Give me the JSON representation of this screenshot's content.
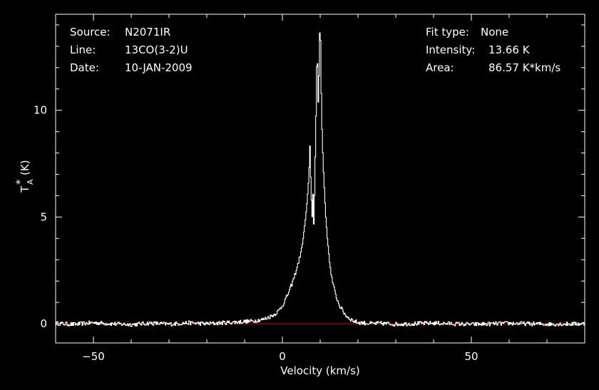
{
  "info_left": {
    "source_label": "Source:",
    "source_value": "N2071IR",
    "line_label": "Line:",
    "line_value": "13CO(3-2)U",
    "date_label": "Date:",
    "date_value": "10-JAN-2009"
  },
  "info_right": {
    "fit_label": "Fit type:",
    "fit_value": "None",
    "intensity_label": "Intensity:",
    "intensity_value": "13.66 K",
    "area_label": "Area:",
    "area_value": "86.57 K*km/s"
  },
  "colors": {
    "background": "#000000",
    "foreground": "#ffffff",
    "baseline": "#cc0000"
  },
  "chart_data": {
    "type": "line",
    "style": "histogram",
    "title": "",
    "xlabel": "Velocity (km/s)",
    "ylabel_main": "T",
    "ylabel_super": "*",
    "ylabel_sub": "A",
    "ylabel_unit": "(K)",
    "xlim": [
      -60,
      80
    ],
    "ylim": [
      -0.9,
      14.5
    ],
    "xticks": [
      -50,
      0,
      50
    ],
    "xtick_labels": [
      "−50",
      "0",
      "50"
    ],
    "yticks": [
      0,
      5,
      10
    ],
    "ytick_labels": [
      "0",
      "5",
      "10"
    ],
    "baseline_y": 0,
    "noise_rms": 0.06,
    "series": [
      {
        "style": "histogram",
        "color": "#ffffff",
        "x": [
          -60,
          -55,
          -50,
          -45,
          -40,
          -35,
          -30,
          -25,
          -20,
          -15,
          -10,
          -8,
          -6,
          -5,
          -4,
          -3,
          -2,
          -1,
          0,
          1,
          2,
          3,
          4,
          5,
          5.5,
          6,
          6.5,
          7,
          7.3,
          7.6,
          7.9,
          8.1,
          8.3,
          8.5,
          8.7,
          8.9,
          9.1,
          9.3,
          9.5,
          9.7,
          9.9,
          10.1,
          10.3,
          10.5,
          10.7,
          10.9,
          11.2,
          11.5,
          12,
          12.5,
          13,
          14,
          15,
          16,
          17,
          18,
          19,
          20,
          22,
          24,
          26,
          30,
          40,
          50,
          60,
          70,
          80
        ],
        "y": [
          0.02,
          -0.03,
          0.05,
          0.0,
          -0.04,
          0.03,
          -0.02,
          0.04,
          0.0,
          0.05,
          0.1,
          0.12,
          0.18,
          0.2,
          0.28,
          0.35,
          0.45,
          0.6,
          0.85,
          1.2,
          1.6,
          2.1,
          2.7,
          3.4,
          4.0,
          4.7,
          5.6,
          6.8,
          8.3,
          6.2,
          5.0,
          6.1,
          4.7,
          6.0,
          7.8,
          9.7,
          12.0,
          12.2,
          10.4,
          11.6,
          13.66,
          13.3,
          10.8,
          9.1,
          8.0,
          7.1,
          6.0,
          5.0,
          3.8,
          2.9,
          2.2,
          1.4,
          0.9,
          0.6,
          0.35,
          0.22,
          0.12,
          0.06,
          0.03,
          0.0,
          0.02,
          -0.02,
          0.03,
          -0.03,
          0.02,
          -0.02,
          0.0
        ]
      }
    ]
  }
}
